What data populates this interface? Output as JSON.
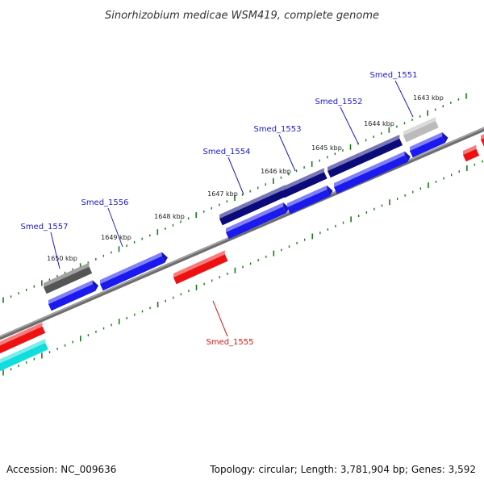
{
  "title": "Sinorhizobium medicae WSM419, complete genome",
  "footer": {
    "accession": "Accession: NC_009636",
    "summary": "Topology: circular; Length: 3,781,904 bp; Genes: 3,592"
  },
  "colors": {
    "backbone": "#808080",
    "tick": "#1a7a1a",
    "label_forward": "#1a1acc",
    "label_reverse": "#cc1a1a",
    "gene_blue": "#1a1aee",
    "gene_navy": "#0a0a7a",
    "gene_gray": "#555555",
    "gene_lightgray": "#bbbbbb",
    "gene_red": "#ee1111",
    "gene_cyan": "#11dddd"
  },
  "kbp_ticks": [
    {
      "kbp": 1650,
      "label": "1650 kbp"
    },
    {
      "kbp": 1649,
      "label": "1649 kbp"
    },
    {
      "kbp": 1648,
      "label": "1648 kbp"
    },
    {
      "kbp": 1647,
      "label": "1647 kbp"
    },
    {
      "kbp": 1646,
      "label": "1646 kbp"
    },
    {
      "kbp": 1645,
      "label": "1645 kbp"
    },
    {
      "kbp": 1644,
      "label": "1644 kbp"
    },
    {
      "kbp": 1643,
      "label": "1643 kbp"
    }
  ],
  "gene_labels": [
    {
      "name": "Smed_1557",
      "strand": "forward"
    },
    {
      "name": "Smed_1556",
      "strand": "forward"
    },
    {
      "name": "Smed_1554",
      "strand": "forward"
    },
    {
      "name": "Smed_1553",
      "strand": "forward"
    },
    {
      "name": "Smed_1552",
      "strand": "forward"
    },
    {
      "name": "Smed_1551",
      "strand": "forward"
    },
    {
      "name": "Smed_1555",
      "strand": "reverse"
    }
  ]
}
